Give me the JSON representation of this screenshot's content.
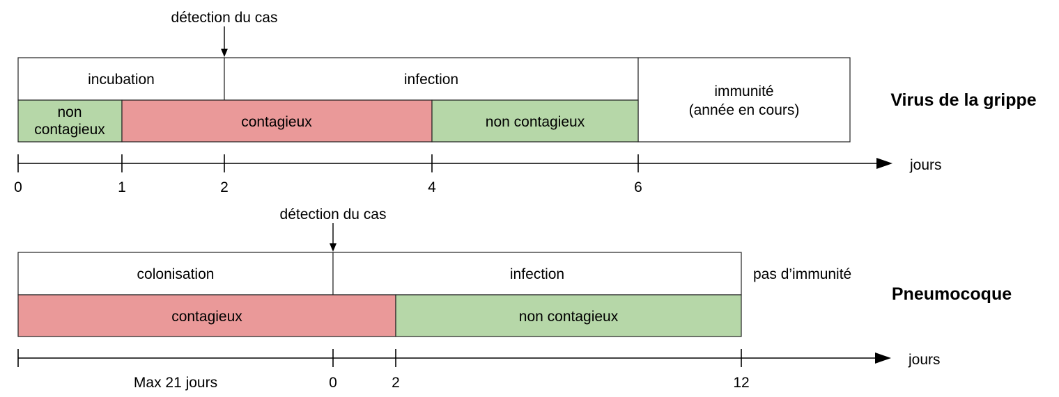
{
  "colors": {
    "contagious": "#ea9999",
    "non_contagious": "#b6d7a8",
    "neutral": "#ffffff"
  },
  "flu": {
    "title": "Virus de la grippe",
    "detection_label": "détection du cas",
    "phase_incubation": "incubation",
    "phase_infection": "infection",
    "immunity_line1": "immunité",
    "immunity_line2": "(année en cours)",
    "seg_noncontag_1_line1": "non",
    "seg_noncontag_1_line2": "contagieux",
    "seg_contag": "contagieux",
    "seg_noncontag_2": "non contagieux",
    "axis_unit": "jours",
    "ticks": [
      "0",
      "1",
      "2",
      "4",
      "6"
    ]
  },
  "pneumo": {
    "title": "Pneumocoque",
    "detection_label": "détection du cas",
    "phase_colonisation": "colonisation",
    "phase_infection": "infection",
    "no_immunity": "pas d’immunité",
    "seg_contag": "contagieux",
    "seg_noncontag": "non contagieux",
    "axis_unit": "jours",
    "ticks": [
      "Max 21 jours",
      "0",
      "2",
      "12"
    ]
  }
}
